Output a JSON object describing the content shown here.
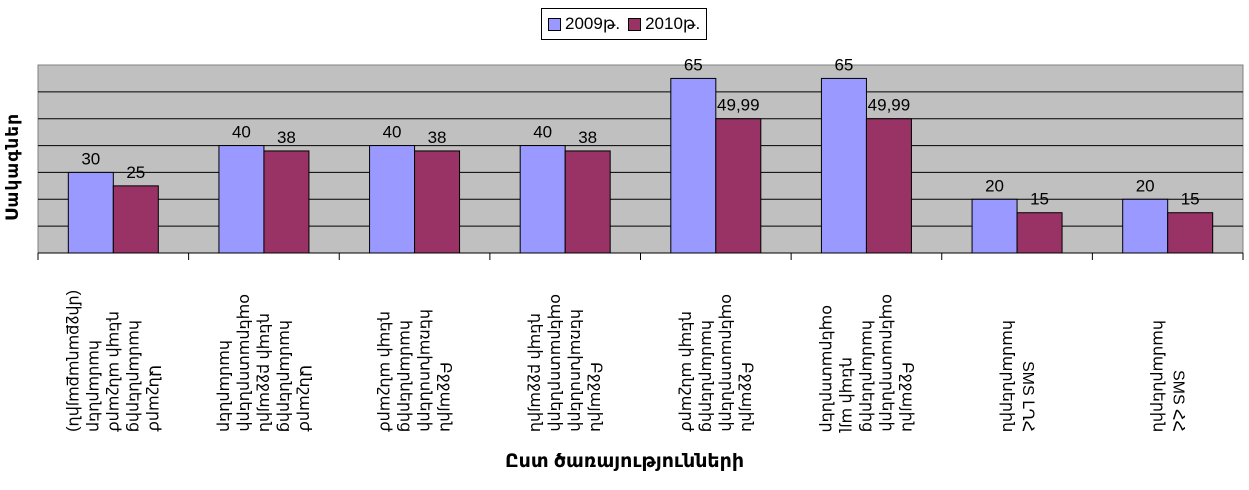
{
  "chart_data": {
    "type": "bar",
    "title": "",
    "xlabel": "Ըստ ծառայությունների",
    "ylabel": "Սակագներ",
    "ylim": [
      0,
      70
    ],
    "grid": true,
    "legend_position": "top",
    "categories": [
      "Անշարժ\nհամարներից\nդեպի անշարժ\nհամարներ\n(միջքաղաքային)",
      "Անշարժ\nհամարներից\nդեպի բջջային\nօպերատորների\nհամարներ",
      "Բջջային\nհեռախոսների\nհամարներից\nդեպի անշարժ",
      "Բջջային\nհեռախոսների\nօպերատորների\nդեպի բջջային",
      "Բջջային\nօպերատորների\nհամարներից\nդեպի անշարժ",
      "Բջջային\nօպերատորների\nհամարներից\nդեպի այլ օպերատորներ",
      "SMS ԼՂՀ\nհամարներին",
      "SMS ՀՀ\nհամարներին"
    ],
    "series": [
      {
        "name": "2009թ.",
        "color": "#9999ff",
        "values": [
          30,
          40,
          40,
          40,
          65,
          65,
          20,
          20
        ],
        "labels": [
          "30",
          "40",
          "40",
          "40",
          "65",
          "65",
          "20",
          "20"
        ]
      },
      {
        "name": "2010թ.",
        "color": "#993366",
        "values": [
          25,
          38,
          38,
          38,
          49.99,
          49.99,
          15,
          15
        ],
        "labels": [
          "25",
          "38",
          "38",
          "38",
          "49,99",
          "49,99",
          "15",
          "15"
        ]
      }
    ]
  }
}
